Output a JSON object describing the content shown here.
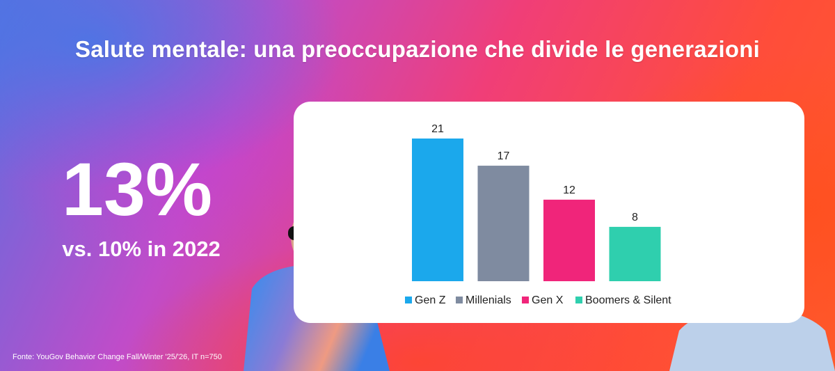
{
  "title": "Salute mentale: una preoccupazione che divide le generazioni",
  "highlight": {
    "value": "13%",
    "comparison": "vs. 10% in 2022"
  },
  "source": "Fonte: YouGov Behavior Change Fall/Winter '25/'26, IT n=750",
  "chart_data": {
    "type": "bar",
    "categories": [
      "Gen Z",
      "Millenials",
      "Gen X",
      "Boomers & Silent"
    ],
    "values": [
      21,
      17,
      12,
      8
    ],
    "colors": [
      "#1ba8ec",
      "#7f8ba0",
      "#f0257a",
      "#2fcfae"
    ],
    "ylim": [
      0,
      21
    ],
    "grid": false,
    "legend_position": "bottom",
    "data_labels": true
  }
}
